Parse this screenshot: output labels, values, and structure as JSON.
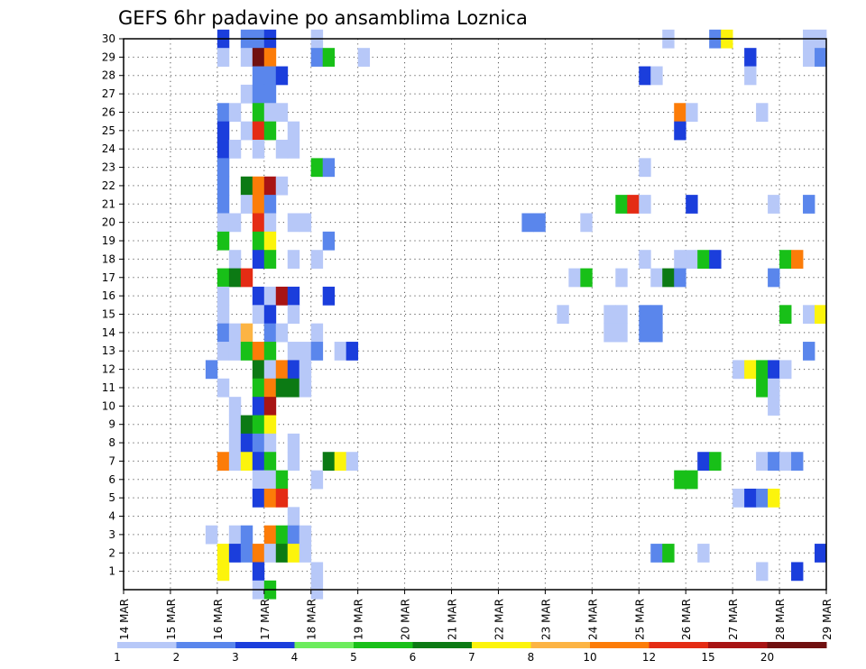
{
  "chart_data": {
    "type": "heatmap",
    "title": "GEFS 6hr padavine po ansamblima Loznica",
    "xlabel": "",
    "ylabel": "",
    "x_axis": {
      "ticks": [
        "14 MAR",
        "15 MAR",
        "16 MAR",
        "17 MAR",
        "18 MAR",
        "19 MAR",
        "20 MAR",
        "21 MAR",
        "22 MAR",
        "23 MAR",
        "24 MAR",
        "25 MAR",
        "26 MAR",
        "27 MAR",
        "28 MAR",
        "29 MAR"
      ],
      "range": [
        "14 MAR",
        "29 MAR"
      ],
      "step": "6hr"
    },
    "y_axis": {
      "ticks": [
        "1",
        "2",
        "3",
        "4",
        "5",
        "6",
        "7",
        "8",
        "9",
        "10",
        "11",
        "12",
        "13",
        "14",
        "15",
        "16",
        "17",
        "18",
        "19",
        "20",
        "21",
        "22",
        "23",
        "24",
        "25",
        "26",
        "27",
        "28",
        "29",
        "30"
      ],
      "range": [
        0,
        30
      ]
    },
    "grid": true,
    "legend_placement": "bottom",
    "colorbar": {
      "labels": [
        "1",
        "2",
        "3",
        "4",
        "5",
        "6",
        "7",
        "8",
        "10",
        "12",
        "15",
        "20"
      ],
      "colors": [
        "#b7c8f8",
        "#5a86ec",
        "#1b3edc",
        "#6cec5c",
        "#18c018",
        "#0c7a14",
        "#fcf40c",
        "#fcb444",
        "#fc7c08",
        "#e42c14",
        "#a81414",
        "#701010"
      ]
    },
    "cells": [
      [
        30,
        "16 MAR 00Z",
        3
      ],
      [
        30,
        "16 MAR 12Z",
        2
      ],
      [
        30,
        "16 MAR 18Z",
        2
      ],
      [
        30,
        "17 MAR 00Z",
        3
      ],
      [
        30,
        "18 MAR 00Z",
        1
      ],
      [
        30,
        "25 MAR 12Z",
        1
      ],
      [
        30,
        "26 MAR 12Z",
        2
      ],
      [
        30,
        "26 MAR 18Z",
        7
      ],
      [
        30,
        "28 MAR 12Z",
        1
      ],
      [
        30,
        "28 MAR 18Z",
        1
      ],
      [
        29,
        "16 MAR 00Z",
        1
      ],
      [
        29,
        "16 MAR 12Z",
        1
      ],
      [
        29,
        "16 MAR 18Z",
        20
      ],
      [
        29,
        "17 MAR 00Z",
        10
      ],
      [
        29,
        "18 MAR 00Z",
        2
      ],
      [
        29,
        "18 MAR 06Z",
        5
      ],
      [
        29,
        "19 MAR 00Z",
        1
      ],
      [
        29,
        "27 MAR 06Z",
        3
      ],
      [
        29,
        "28 MAR 12Z",
        1
      ],
      [
        29,
        "28 MAR 18Z",
        2
      ],
      [
        28,
        "16 MAR 18Z",
        2
      ],
      [
        28,
        "17 MAR 00Z",
        2
      ],
      [
        28,
        "17 MAR 06Z",
        3
      ],
      [
        28,
        "25 MAR 00Z",
        3
      ],
      [
        28,
        "25 MAR 06Z",
        1
      ],
      [
        28,
        "27 MAR 06Z",
        1
      ],
      [
        27,
        "16 MAR 12Z",
        1
      ],
      [
        27,
        "16 MAR 18Z",
        2
      ],
      [
        27,
        "17 MAR 00Z",
        2
      ],
      [
        26,
        "16 MAR 00Z",
        2
      ],
      [
        26,
        "16 MAR 06Z",
        1
      ],
      [
        26,
        "16 MAR 18Z",
        5
      ],
      [
        26,
        "17 MAR 00Z",
        1
      ],
      [
        26,
        "17 MAR 06Z",
        1
      ],
      [
        26,
        "25 MAR 18Z",
        10
      ],
      [
        26,
        "26 MAR 00Z",
        1
      ],
      [
        26,
        "27 MAR 12Z",
        1
      ],
      [
        25,
        "16 MAR 00Z",
        3
      ],
      [
        25,
        "16 MAR 12Z",
        1
      ],
      [
        25,
        "16 MAR 18Z",
        12
      ],
      [
        25,
        "17 MAR 00Z",
        5
      ],
      [
        25,
        "17 MAR 12Z",
        1
      ],
      [
        25,
        "25 MAR 18Z",
        3
      ],
      [
        24,
        "16 MAR 00Z",
        3
      ],
      [
        24,
        "16 MAR 06Z",
        1
      ],
      [
        24,
        "16 MAR 18Z",
        1
      ],
      [
        24,
        "17 MAR 06Z",
        1
      ],
      [
        24,
        "17 MAR 12Z",
        1
      ],
      [
        23,
        "16 MAR 00Z",
        2
      ],
      [
        23,
        "18 MAR 00Z",
        5
      ],
      [
        23,
        "18 MAR 06Z",
        2
      ],
      [
        23,
        "25 MAR 00Z",
        1
      ],
      [
        22,
        "16 MAR 00Z",
        2
      ],
      [
        22,
        "16 MAR 12Z",
        6
      ],
      [
        22,
        "16 MAR 18Z",
        10
      ],
      [
        22,
        "17 MAR 00Z",
        15
      ],
      [
        22,
        "17 MAR 06Z",
        1
      ],
      [
        21,
        "16 MAR 00Z",
        2
      ],
      [
        21,
        "16 MAR 12Z",
        1
      ],
      [
        21,
        "16 MAR 18Z",
        10
      ],
      [
        21,
        "17 MAR 00Z",
        2
      ],
      [
        21,
        "24 MAR 12Z",
        5
      ],
      [
        21,
        "24 MAR 18Z",
        12
      ],
      [
        21,
        "25 MAR 00Z",
        1
      ],
      [
        21,
        "26 MAR 00Z",
        3
      ],
      [
        21,
        "27 MAR 18Z",
        1
      ],
      [
        21,
        "28 MAR 12Z",
        2
      ],
      [
        20,
        "16 MAR 00Z",
        1
      ],
      [
        20,
        "16 MAR 06Z",
        1
      ],
      [
        20,
        "16 MAR 18Z",
        12
      ],
      [
        20,
        "17 MAR 00Z",
        1
      ],
      [
        20,
        "17 MAR 12Z",
        1
      ],
      [
        20,
        "17 MAR 18Z",
        1
      ],
      [
        20,
        "22 MAR 12Z",
        2
      ],
      [
        20,
        "22 MAR 18Z",
        2
      ],
      [
        20,
        "23 MAR 18Z",
        1
      ],
      [
        19,
        "16 MAR 00Z",
        5
      ],
      [
        19,
        "16 MAR 18Z",
        5
      ],
      [
        19,
        "17 MAR 00Z",
        7
      ],
      [
        19,
        "18 MAR 06Z",
        2
      ],
      [
        18,
        "16 MAR 06Z",
        1
      ],
      [
        18,
        "16 MAR 18Z",
        3
      ],
      [
        18,
        "17 MAR 00Z",
        5
      ],
      [
        18,
        "17 MAR 12Z",
        1
      ],
      [
        18,
        "18 MAR 00Z",
        1
      ],
      [
        18,
        "25 MAR 00Z",
        1
      ],
      [
        18,
        "25 MAR 18Z",
        1
      ],
      [
        18,
        "26 MAR 00Z",
        1
      ],
      [
        18,
        "26 MAR 06Z",
        5
      ],
      [
        18,
        "26 MAR 12Z",
        3
      ],
      [
        18,
        "28 MAR 00Z",
        5
      ],
      [
        18,
        "28 MAR 06Z",
        10
      ],
      [
        17,
        "16 MAR 00Z",
        5
      ],
      [
        17,
        "16 MAR 06Z",
        6
      ],
      [
        17,
        "16 MAR 12Z",
        12
      ],
      [
        17,
        "23 MAR 12Z",
        1
      ],
      [
        17,
        "23 MAR 18Z",
        5
      ],
      [
        17,
        "24 MAR 12Z",
        1
      ],
      [
        17,
        "25 MAR 06Z",
        1
      ],
      [
        17,
        "25 MAR 12Z",
        6
      ],
      [
        17,
        "25 MAR 18Z",
        2
      ],
      [
        17,
        "27 MAR 18Z",
        2
      ],
      [
        16,
        "16 MAR 00Z",
        1
      ],
      [
        16,
        "16 MAR 18Z",
        3
      ],
      [
        16,
        "17 MAR 00Z",
        1
      ],
      [
        16,
        "17 MAR 06Z",
        15
      ],
      [
        16,
        "17 MAR 12Z",
        3
      ],
      [
        16,
        "18 MAR 06Z",
        3
      ],
      [
        15,
        "16 MAR 00Z",
        1
      ],
      [
        15,
        "16 MAR 18Z",
        1
      ],
      [
        15,
        "17 MAR 00Z",
        3
      ],
      [
        15,
        "17 MAR 12Z",
        1
      ],
      [
        15,
        "23 MAR 06Z",
        1
      ],
      [
        15,
        "24 MAR 06Z",
        1
      ],
      [
        15,
        "24 MAR 12Z",
        1
      ],
      [
        15,
        "25 MAR 00Z",
        2
      ],
      [
        15,
        "25 MAR 06Z",
        2
      ],
      [
        15,
        "28 MAR 00Z",
        5
      ],
      [
        15,
        "28 MAR 12Z",
        1
      ],
      [
        15,
        "28 MAR 18Z",
        7
      ],
      [
        14,
        "16 MAR 00Z",
        2
      ],
      [
        14,
        "16 MAR 06Z",
        1
      ],
      [
        14,
        "16 MAR 12Z",
        8
      ],
      [
        14,
        "17 MAR 00Z",
        2
      ],
      [
        14,
        "17 MAR 06Z",
        1
      ],
      [
        14,
        "18 MAR 00Z",
        1
      ],
      [
        14,
        "24 MAR 06Z",
        1
      ],
      [
        14,
        "24 MAR 12Z",
        1
      ],
      [
        14,
        "25 MAR 00Z",
        2
      ],
      [
        14,
        "25 MAR 06Z",
        2
      ],
      [
        13,
        "16 MAR 00Z",
        1
      ],
      [
        13,
        "16 MAR 06Z",
        1
      ],
      [
        13,
        "16 MAR 12Z",
        5
      ],
      [
        13,
        "16 MAR 18Z",
        10
      ],
      [
        13,
        "17 MAR 00Z",
        5
      ],
      [
        13,
        "17 MAR 12Z",
        1
      ],
      [
        13,
        "17 MAR 18Z",
        1
      ],
      [
        13,
        "18 MAR 00Z",
        2
      ],
      [
        13,
        "18 MAR 12Z",
        1
      ],
      [
        13,
        "18 MAR 18Z",
        3
      ],
      [
        13,
        "28 MAR 12Z",
        2
      ],
      [
        12,
        "15 MAR 18Z",
        2
      ],
      [
        12,
        "16 MAR 18Z",
        6
      ],
      [
        12,
        "17 MAR 00Z",
        1
      ],
      [
        12,
        "17 MAR 06Z",
        10
      ],
      [
        12,
        "17 MAR 12Z",
        3
      ],
      [
        12,
        "17 MAR 18Z",
        1
      ],
      [
        12,
        "27 MAR 00Z",
        1
      ],
      [
        12,
        "27 MAR 06Z",
        7
      ],
      [
        12,
        "27 MAR 12Z",
        5
      ],
      [
        12,
        "27 MAR 18Z",
        3
      ],
      [
        12,
        "28 MAR 00Z",
        1
      ],
      [
        11,
        "16 MAR 00Z",
        1
      ],
      [
        11,
        "16 MAR 18Z",
        5
      ],
      [
        11,
        "17 MAR 00Z",
        10
      ],
      [
        11,
        "17 MAR 06Z",
        6
      ],
      [
        11,
        "17 MAR 12Z",
        6
      ],
      [
        11,
        "17 MAR 18Z",
        1
      ],
      [
        11,
        "27 MAR 12Z",
        5
      ],
      [
        11,
        "27 MAR 18Z",
        1
      ],
      [
        10,
        "16 MAR 06Z",
        1
      ],
      [
        10,
        "16 MAR 18Z",
        3
      ],
      [
        10,
        "17 MAR 00Z",
        15
      ],
      [
        10,
        "27 MAR 18Z",
        1
      ],
      [
        9,
        "16 MAR 06Z",
        1
      ],
      [
        9,
        "16 MAR 12Z",
        6
      ],
      [
        9,
        "16 MAR 18Z",
        5
      ],
      [
        9,
        "17 MAR 00Z",
        7
      ],
      [
        8,
        "16 MAR 06Z",
        1
      ],
      [
        8,
        "16 MAR 12Z",
        3
      ],
      [
        8,
        "16 MAR 18Z",
        2
      ],
      [
        8,
        "17 MAR 00Z",
        1
      ],
      [
        8,
        "17 MAR 12Z",
        1
      ],
      [
        7,
        "16 MAR 00Z",
        10
      ],
      [
        7,
        "16 MAR 06Z",
        1
      ],
      [
        7,
        "16 MAR 12Z",
        7
      ],
      [
        7,
        "16 MAR 18Z",
        3
      ],
      [
        7,
        "17 MAR 00Z",
        5
      ],
      [
        7,
        "17 MAR 12Z",
        1
      ],
      [
        7,
        "18 MAR 06Z",
        6
      ],
      [
        7,
        "18 MAR 12Z",
        7
      ],
      [
        7,
        "18 MAR 18Z",
        1
      ],
      [
        7,
        "26 MAR 06Z",
        3
      ],
      [
        7,
        "26 MAR 12Z",
        5
      ],
      [
        7,
        "27 MAR 12Z",
        1
      ],
      [
        7,
        "27 MAR 18Z",
        2
      ],
      [
        7,
        "28 MAR 00Z",
        1
      ],
      [
        7,
        "28 MAR 06Z",
        2
      ],
      [
        6,
        "16 MAR 18Z",
        1
      ],
      [
        6,
        "17 MAR 00Z",
        1
      ],
      [
        6,
        "17 MAR 06Z",
        5
      ],
      [
        6,
        "18 MAR 00Z",
        1
      ],
      [
        6,
        "25 MAR 18Z",
        5
      ],
      [
        6,
        "26 MAR 00Z",
        5
      ],
      [
        5,
        "16 MAR 18Z",
        3
      ],
      [
        5,
        "17 MAR 00Z",
        10
      ],
      [
        5,
        "17 MAR 06Z",
        12
      ],
      [
        5,
        "27 MAR 00Z",
        1
      ],
      [
        5,
        "27 MAR 06Z",
        3
      ],
      [
        5,
        "27 MAR 12Z",
        2
      ],
      [
        5,
        "27 MAR 18Z",
        7
      ],
      [
        4,
        "17 MAR 12Z",
        1
      ],
      [
        3,
        "15 MAR 18Z",
        1
      ],
      [
        3,
        "16 MAR 06Z",
        1
      ],
      [
        3,
        "16 MAR 12Z",
        2
      ],
      [
        3,
        "17 MAR 00Z",
        10
      ],
      [
        3,
        "17 MAR 06Z",
        5
      ],
      [
        3,
        "17 MAR 12Z",
        2
      ],
      [
        3,
        "17 MAR 18Z",
        1
      ],
      [
        2,
        "16 MAR 00Z",
        7
      ],
      [
        2,
        "16 MAR 06Z",
        3
      ],
      [
        2,
        "16 MAR 12Z",
        2
      ],
      [
        2,
        "16 MAR 18Z",
        10
      ],
      [
        2,
        "17 MAR 00Z",
        1
      ],
      [
        2,
        "17 MAR 06Z",
        6
      ],
      [
        2,
        "17 MAR 12Z",
        7
      ],
      [
        2,
        "17 MAR 18Z",
        1
      ],
      [
        2,
        "25 MAR 06Z",
        2
      ],
      [
        2,
        "25 MAR 12Z",
        5
      ],
      [
        2,
        "26 MAR 06Z",
        1
      ],
      [
        2,
        "28 MAR 18Z",
        3
      ],
      [
        1,
        "16 MAR 00Z",
        7
      ],
      [
        1,
        "16 MAR 18Z",
        3
      ],
      [
        1,
        "18 MAR 00Z",
        1
      ],
      [
        1,
        "27 MAR 12Z",
        1
      ],
      [
        1,
        "28 MAR 06Z",
        3
      ],
      [
        0,
        "16 MAR 18Z",
        1
      ],
      [
        0,
        "17 MAR 00Z",
        5
      ],
      [
        0,
        "18 MAR 00Z",
        1
      ]
    ]
  }
}
